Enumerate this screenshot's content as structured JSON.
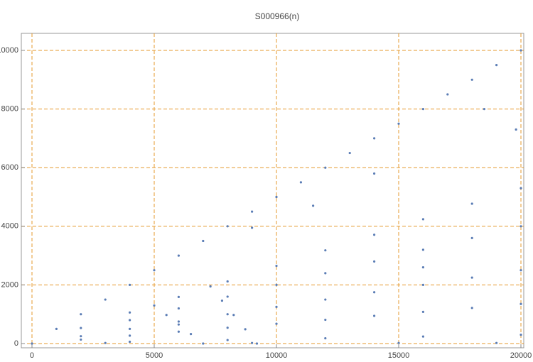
{
  "chart_data": {
    "type": "scatter",
    "title": "S000966(n)",
    "color": "#5b7db5",
    "grid": true,
    "xlim": [
      -436,
      20116
    ],
    "ylim": [
      -145,
      10581
    ],
    "xticks": [
      0,
      5000,
      10000,
      15000,
      20000
    ],
    "yticks": [
      0,
      2000,
      4000,
      6000,
      8000,
      10000
    ],
    "x": [
      0,
      1000,
      2000,
      3000,
      4000,
      5000,
      6000,
      7000,
      8000,
      9000,
      10000,
      11000,
      12000,
      13000,
      14000,
      15000,
      16000,
      17000,
      18000,
      19000,
      20000,
      2000,
      4000,
      6000,
      8000,
      10000,
      12000,
      14000,
      16000,
      18000,
      20000,
      4000,
      6000,
      8000,
      10000,
      12000,
      14000,
      16000,
      18000,
      20000,
      2000,
      4000,
      6000,
      8000,
      10000,
      12000,
      14000,
      16000,
      18000,
      20000,
      2000,
      4000,
      6000,
      8000,
      10000,
      12000,
      14000,
      16000,
      18000,
      20000,
      4000,
      8000,
      12000,
      16000,
      20000,
      3000,
      9000,
      15000,
      19000,
      5000,
      5500,
      6000,
      6500,
      7000,
      7300,
      7775,
      8250,
      8725,
      9200,
      9000,
      14000,
      18500,
      19800,
      11500,
      16000
    ],
    "values": [
      0,
      500,
      1000,
      1500,
      2000,
      2500,
      3000,
      3500,
      4000,
      4500,
      5000,
      5500,
      6000,
      6500,
      7000,
      7500,
      8000,
      8500,
      9000,
      9500,
      10000,
      530,
      1060,
      1590,
      2120,
      2650,
      3180,
      3710,
      4240,
      4770,
      5300,
      800,
      1200,
      1600,
      2000,
      2400,
      2800,
      3200,
      3600,
      4000,
      250,
      500,
      750,
      1000,
      1250,
      1500,
      1750,
      2000,
      2250,
      2500,
      135,
      270,
      405,
      540,
      675,
      810,
      945,
      1080,
      1215,
      1350,
      60,
      120,
      180,
      240,
      300,
      20,
      20,
      20,
      20,
      1300,
      975,
      650,
      325,
      0,
      1950,
      1463,
      975,
      488,
      0,
      3950,
      5800,
      8000,
      7300,
      4700,
      2600
    ]
  }
}
